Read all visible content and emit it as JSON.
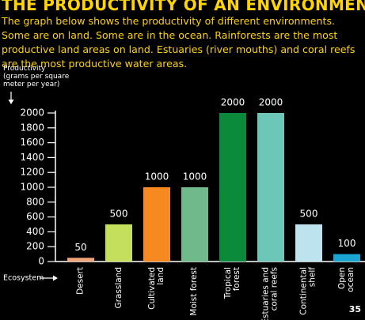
{
  "chart_data": {
    "type": "bar",
    "title": "THE PRODUCTIVITY OF AN ENVIRONMENT",
    "description": "The graph below shows the productivity of different environments. Some are on land. Some are in the ocean. Rainforests are the most productive land areas on land. Estuaries (river mouths) and coral reefs are the most productive water areas.",
    "y_axis_label": "Productivity\n(grams per square\nmeter per year)",
    "x_axis_label": "Ecosystem",
    "categories": [
      "Desert",
      "Grassland",
      "Cultivated\nland",
      "Moist forest",
      "Tropical\nforest",
      "Estuaries and\ncoral reefs",
      "Continental\nshelf",
      "Open\nocean"
    ],
    "values": [
      50,
      500,
      1000,
      1000,
      2000,
      2000,
      500,
      100
    ],
    "colors": [
      "#f3a57a",
      "#c3df5c",
      "#f68a20",
      "#6fb98a",
      "#0c8a3c",
      "#6cc7b9",
      "#bde3ef",
      "#1aa6d2"
    ],
    "ylim": [
      0,
      2000
    ],
    "yticks": [
      0,
      200,
      400,
      600,
      800,
      1000,
      1200,
      1400,
      1600,
      1800,
      2000
    ]
  },
  "page_number": "35"
}
